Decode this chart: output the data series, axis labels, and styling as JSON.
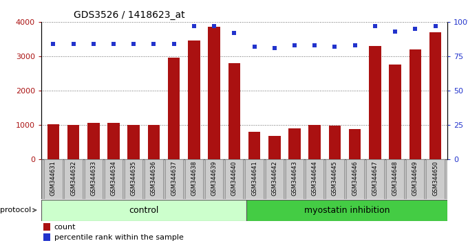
{
  "title": "GDS3526 / 1418623_at",
  "samples": [
    "GSM344631",
    "GSM344632",
    "GSM344633",
    "GSM344634",
    "GSM344635",
    "GSM344636",
    "GSM344637",
    "GSM344638",
    "GSM344639",
    "GSM344640",
    "GSM344641",
    "GSM344642",
    "GSM344643",
    "GSM344644",
    "GSM344645",
    "GSM344646",
    "GSM344647",
    "GSM344648",
    "GSM344649",
    "GSM344650"
  ],
  "counts": [
    1010,
    990,
    1060,
    1060,
    990,
    1000,
    2950,
    3450,
    3850,
    2800,
    800,
    670,
    900,
    1000,
    980,
    880,
    3300,
    2750,
    3200,
    3700
  ],
  "percentiles": [
    84,
    84,
    84,
    84,
    84,
    84,
    84,
    97,
    97,
    92,
    82,
    81,
    83,
    83,
    82,
    83,
    97,
    93,
    95,
    97
  ],
  "bar_color": "#aa1111",
  "dot_color": "#2233cc",
  "ylim_left": [
    0,
    4000
  ],
  "ylim_right": [
    0,
    100
  ],
  "yticks_left": [
    0,
    1000,
    2000,
    3000,
    4000
  ],
  "yticks_right": [
    0,
    25,
    50,
    75,
    100
  ],
  "control_count": 10,
  "control_label": "control",
  "treatment_label": "myostatin inhibition",
  "protocol_label": "protocol",
  "legend_count": "count",
  "legend_pct": "percentile rank within the sample",
  "control_bg": "#ccffcc",
  "treatment_bg": "#44cc44",
  "cell_bg": "#cccccc",
  "plot_bg": "#ffffff"
}
